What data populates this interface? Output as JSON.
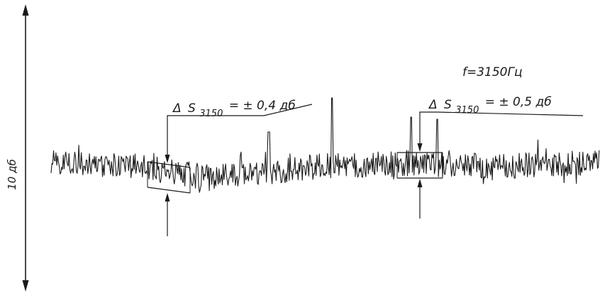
{
  "scale_label": "10 дб",
  "frequency_label": "f=3150Гц",
  "annotations": [
    {
      "delta_symbol": "Δ",
      "var": "S",
      "subscript": "3150",
      "value_text": "= ± 0,4 дб"
    },
    {
      "delta_symbol": "Δ",
      "var": "S",
      "subscript": "3150",
      "value_text": "= ± 0,5 дб"
    }
  ]
}
